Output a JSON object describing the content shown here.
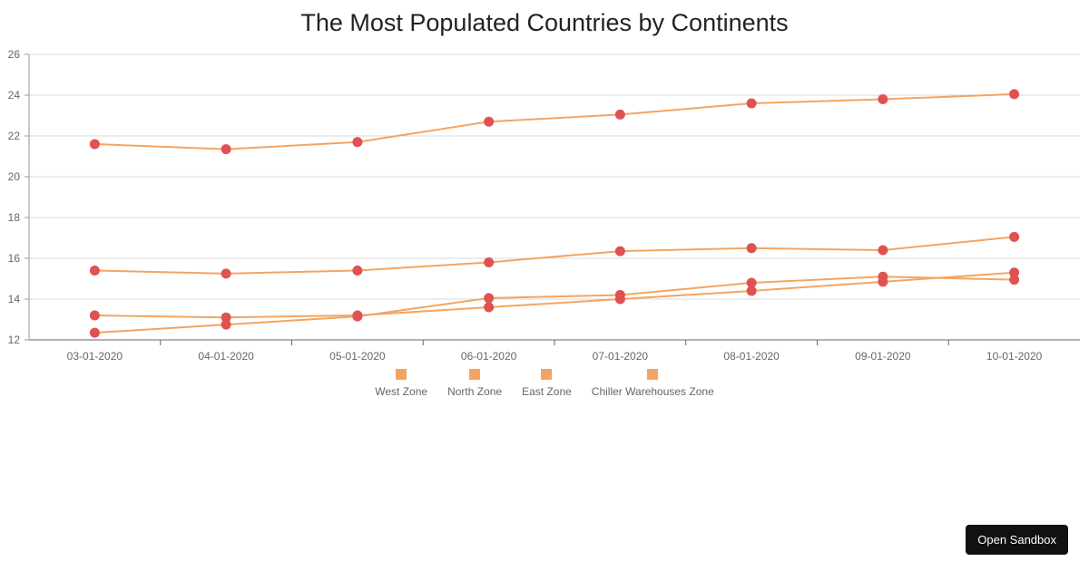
{
  "chart_data": {
    "type": "line",
    "title": "The Most Populated Countries by Continents",
    "x": [
      "03-01-2020",
      "04-01-2020",
      "05-01-2020",
      "06-01-2020",
      "07-01-2020",
      "08-01-2020",
      "09-01-2020",
      "10-01-2020"
    ],
    "ylim": [
      12,
      26
    ],
    "yticks": [
      12,
      14,
      16,
      18,
      20,
      22,
      24,
      26
    ],
    "grid": true,
    "legend_position": "bottom",
    "line_color": "#f4a460",
    "marker_color": "#e05252",
    "series": [
      {
        "name": "West Zone",
        "values": [
          21.6,
          21.35,
          21.7,
          22.7,
          23.05,
          23.6,
          23.8,
          24.05
        ]
      },
      {
        "name": "North Zone",
        "values": [
          15.4,
          15.25,
          15.4,
          15.8,
          16.35,
          16.5,
          16.4,
          17.05
        ]
      },
      {
        "name": "East Zone",
        "values": [
          13.2,
          13.1,
          13.2,
          13.6,
          14.0,
          14.4,
          14.85,
          15.3
        ]
      },
      {
        "name": "Chiller Warehouses Zone",
        "values": [
          12.35,
          12.75,
          13.15,
          14.05,
          14.2,
          14.8,
          15.1,
          14.95
        ]
      }
    ]
  },
  "sandbox_button": {
    "label": "Open Sandbox"
  }
}
